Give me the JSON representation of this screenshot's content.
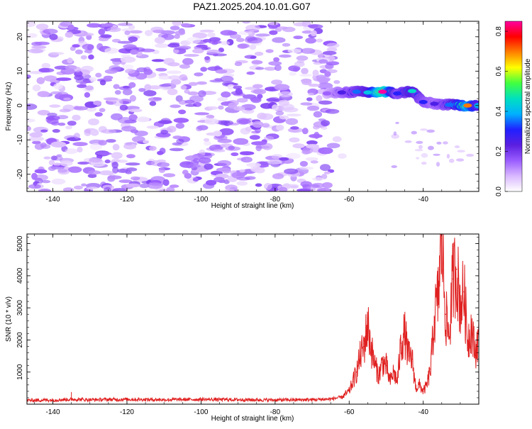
{
  "title": "PAZ1.2025.204.10.01.G07",
  "colors": {
    "line": "#e02020",
    "colormap": [
      "#ffffff",
      "#d9b8ff",
      "#9a5cff",
      "#5b1fe0",
      "#2020ff",
      "#00b0ff",
      "#00e0c0",
      "#40ff40",
      "#ffff00",
      "#ff8000",
      "#ff0000",
      "#ff00a0"
    ]
  },
  "chart_data": [
    {
      "type": "heatmap",
      "xlabel": "Height of straight line (km)",
      "ylabel": "Frequency (Hz)",
      "xlim": [
        -147,
        -25
      ],
      "ylim": [
        -25,
        24.5
      ],
      "xticks": [
        -140,
        -120,
        -100,
        -80,
        -60,
        -40
      ],
      "yticks": [
        -20,
        -10,
        0,
        10,
        20
      ],
      "colorbar": {
        "label": "Normalized spectral amplitude",
        "range": [
          0.0,
          0.85
        ],
        "ticks": [
          0.0,
          0.2,
          0.4,
          0.6,
          0.8
        ]
      },
      "noise_region": {
        "x": [
          -147,
          -64
        ],
        "amplitude_range": [
          0.0,
          0.15
        ]
      },
      "signal_ridge": [
        {
          "x": -66,
          "y": 3.5,
          "amplitude": 0.15
        },
        {
          "x": -62,
          "y": 3.8,
          "amplitude": 0.25
        },
        {
          "x": -58,
          "y": 4.0,
          "amplitude": 0.35
        },
        {
          "x": -55,
          "y": 3.8,
          "amplitude": 0.42
        },
        {
          "x": -51,
          "y": 4.0,
          "amplitude": 0.85
        },
        {
          "x": -47,
          "y": 3.5,
          "amplitude": 0.3
        },
        {
          "x": -43,
          "y": 4.2,
          "amplitude": 0.45
        },
        {
          "x": -40,
          "y": 1.0,
          "amplitude": 0.3
        },
        {
          "x": -37,
          "y": 0.5,
          "amplitude": 0.25
        },
        {
          "x": -33,
          "y": 0.2,
          "amplitude": 0.35
        },
        {
          "x": -28,
          "y": 0.0,
          "amplitude": 0.7
        },
        {
          "x": -25,
          "y": 0.0,
          "amplitude": 0.4
        }
      ]
    },
    {
      "type": "line",
      "xlabel": "Height of straight line (km)",
      "ylabel": "SNR (10 * v/v)",
      "xlim": [
        -147,
        -25
      ],
      "ylim": [
        0,
        5300
      ],
      "xticks": [
        -140,
        -120,
        -100,
        -80,
        -60,
        -40
      ],
      "yticks": [
        1000,
        2000,
        3000,
        4000,
        5000
      ],
      "series": [
        {
          "x": [
            -147,
            -140,
            -135,
            -130,
            -120,
            -110,
            -100,
            -90,
            -80,
            -70,
            -65,
            -62,
            -60,
            -59,
            -58,
            -57,
            -56,
            -55,
            -54,
            -53,
            -52,
            -51,
            -50,
            -49,
            -48,
            -47,
            -46,
            -45,
            -44,
            -43,
            -42,
            -41,
            -40,
            -39,
            -38,
            -37,
            -36,
            -35,
            -34,
            -33,
            -32,
            -31,
            -30,
            -29,
            -28,
            -27,
            -26,
            -25
          ],
          "y": [
            120,
            130,
            150,
            140,
            150,
            140,
            150,
            140,
            130,
            140,
            160,
            220,
            400,
            700,
            1000,
            1500,
            1800,
            2500,
            1700,
            1200,
            900,
            1300,
            1200,
            700,
            1000,
            700,
            1900,
            2200,
            1500,
            1400,
            500,
            600,
            400,
            600,
            1100,
            2700,
            3300,
            5300,
            2800,
            2100,
            3900,
            4200,
            3100,
            3500,
            2000,
            2400,
            1600,
            2100
          ]
        }
      ]
    }
  ]
}
